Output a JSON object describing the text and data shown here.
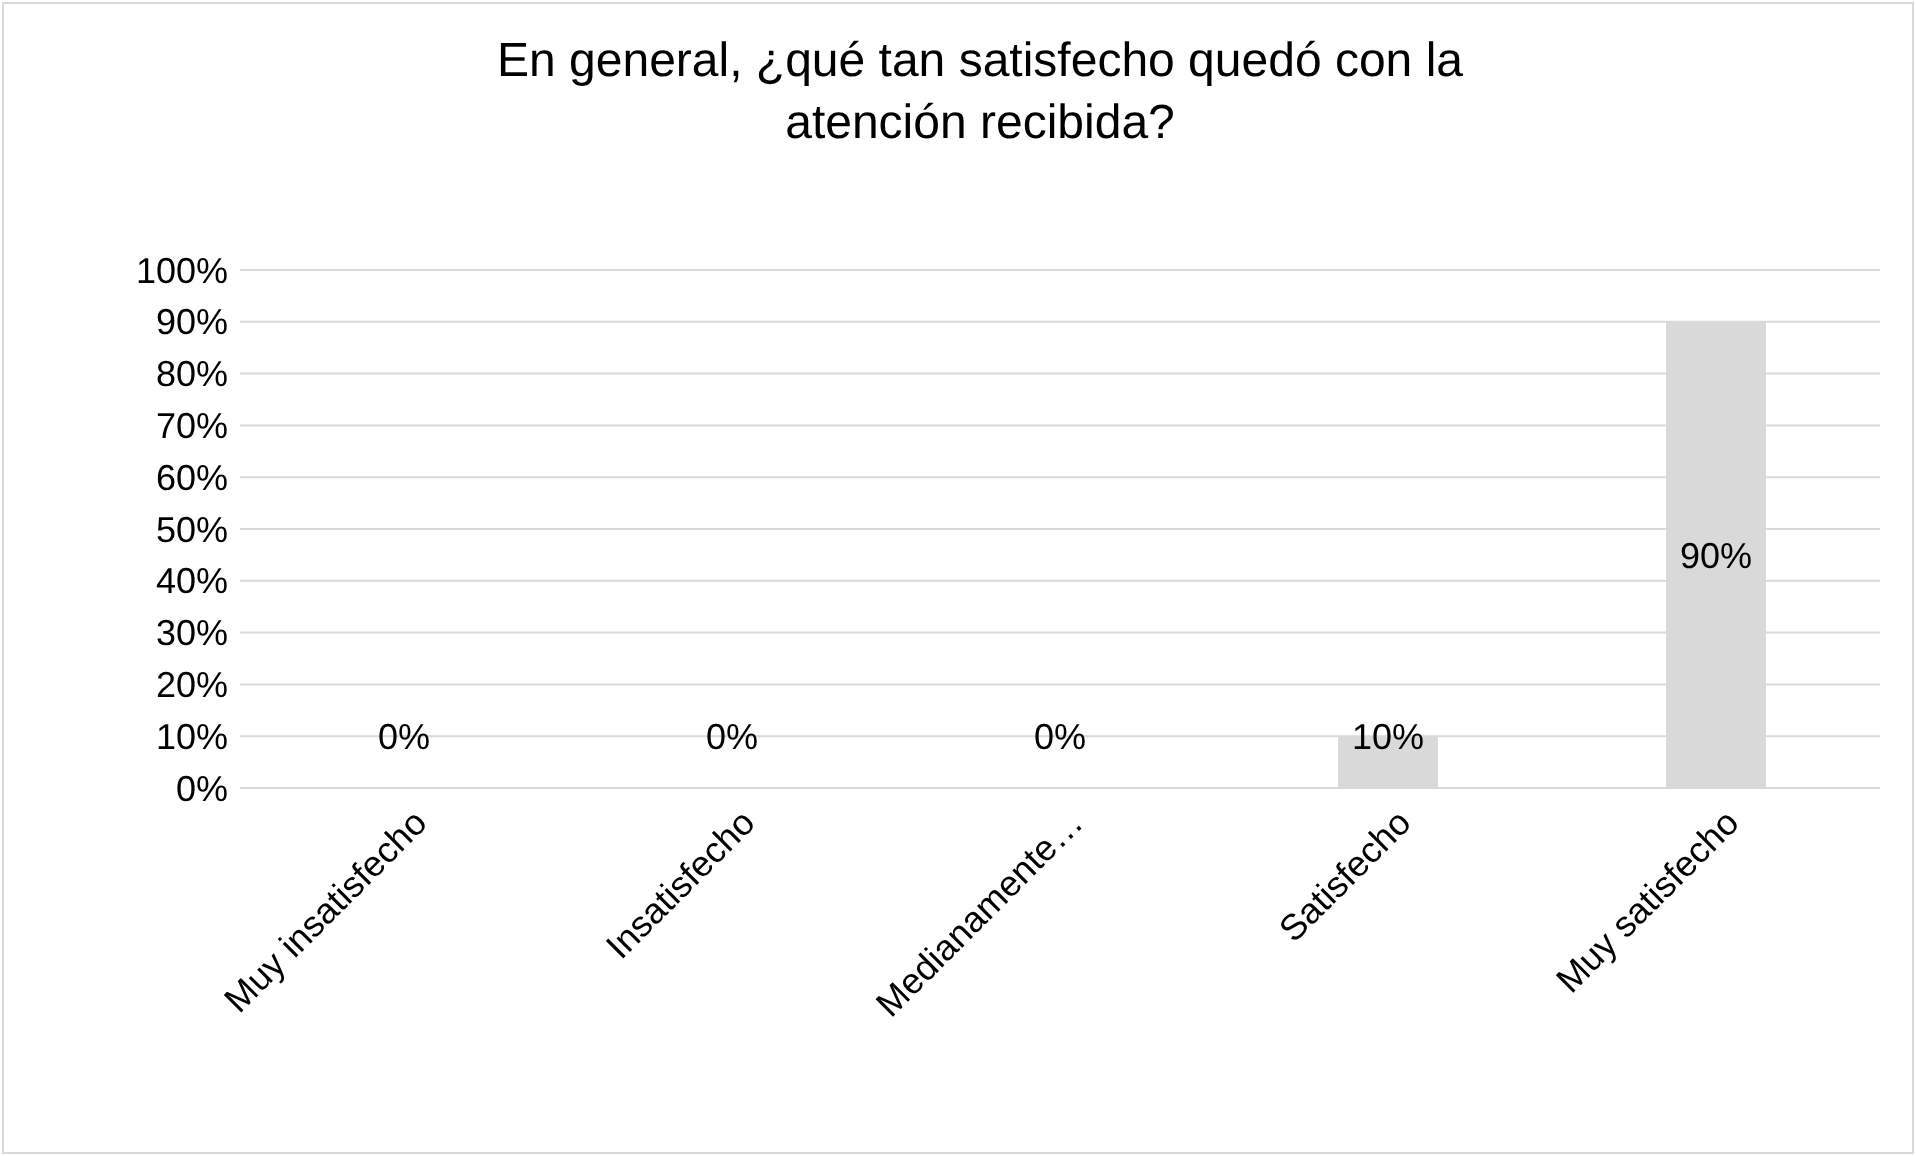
{
  "chart_data": {
    "type": "bar",
    "title": "En general, ¿qué tan satisfecho quedó con la atención recibida?",
    "categories": [
      "Muy insatisfecho",
      "Insatisfecho",
      "Medianamente…",
      "Satisfecho",
      "Muy satisfecho"
    ],
    "values": [
      0,
      0,
      0,
      10,
      90
    ],
    "value_labels": [
      "0%",
      "0%",
      "0%",
      "10%",
      "90%"
    ],
    "color": "#d9d9d9",
    "ylim": [
      0,
      100
    ],
    "yticks": [
      {
        "value": 0,
        "label": "0%"
      },
      {
        "value": 10,
        "label": "10%"
      },
      {
        "value": 20,
        "label": "20%"
      },
      {
        "value": 30,
        "label": "30%"
      },
      {
        "value": 40,
        "label": "40%"
      },
      {
        "value": 50,
        "label": "50%"
      },
      {
        "value": 60,
        "label": "60%"
      },
      {
        "value": 70,
        "label": "70%"
      },
      {
        "value": 80,
        "label": "80%"
      },
      {
        "value": 90,
        "label": "90%"
      },
      {
        "value": 100,
        "label": "100%"
      }
    ],
    "grid": "y"
  }
}
